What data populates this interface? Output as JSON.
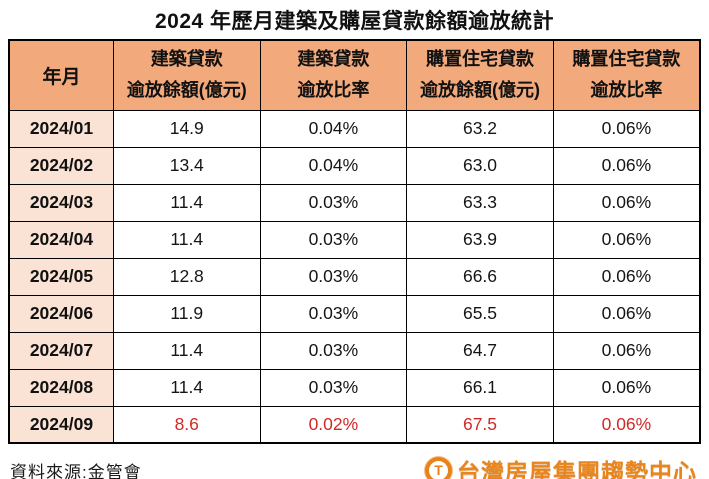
{
  "chart_data": {
    "type": "table",
    "title": "2024 年歷月建築及購屋貸款餘額逾放統計",
    "columns": [
      {
        "label": "年月"
      },
      {
        "line1": "建築貸款",
        "line2": "逾放餘額(億元)"
      },
      {
        "line1": "建築貸款",
        "line2": "逾放比率"
      },
      {
        "line1": "購置住宅貸款",
        "line2": "逾放餘額(億元)"
      },
      {
        "line1": "購置住宅貸款",
        "line2": "逾放比率"
      }
    ],
    "rows": [
      {
        "month": "2024/01",
        "values": [
          "14.9",
          "0.04%",
          "63.2",
          "0.06%"
        ],
        "highlight": false
      },
      {
        "month": "2024/02",
        "values": [
          "13.4",
          "0.04%",
          "63.0",
          "0.06%"
        ],
        "highlight": false
      },
      {
        "month": "2024/03",
        "values": [
          "11.4",
          "0.03%",
          "63.3",
          "0.06%"
        ],
        "highlight": false
      },
      {
        "month": "2024/04",
        "values": [
          "11.4",
          "0.03%",
          "63.9",
          "0.06%"
        ],
        "highlight": false
      },
      {
        "month": "2024/05",
        "values": [
          "12.8",
          "0.03%",
          "66.6",
          "0.06%"
        ],
        "highlight": false
      },
      {
        "month": "2024/06",
        "values": [
          "11.9",
          "0.03%",
          "65.5",
          "0.06%"
        ],
        "highlight": false
      },
      {
        "month": "2024/07",
        "values": [
          "11.4",
          "0.03%",
          "64.7",
          "0.06%"
        ],
        "highlight": false
      },
      {
        "month": "2024/08",
        "values": [
          "11.4",
          "0.03%",
          "66.1",
          "0.06%"
        ],
        "highlight": false
      },
      {
        "month": "2024/09",
        "values": [
          "8.6",
          "0.02%",
          "67.5",
          "0.06%"
        ],
        "highlight": true
      }
    ],
    "source": "資料來源:金管會"
  },
  "branding": {
    "logo_icon_letter": "T",
    "logo_text": "台灣房屋集團趨勢中心"
  },
  "colors": {
    "header_bg": "#f2a97c",
    "row_label_bg": "#fae3d4",
    "border": "#000000",
    "highlight_text": "#cf2a27",
    "logo_orange": "#e8851c"
  }
}
